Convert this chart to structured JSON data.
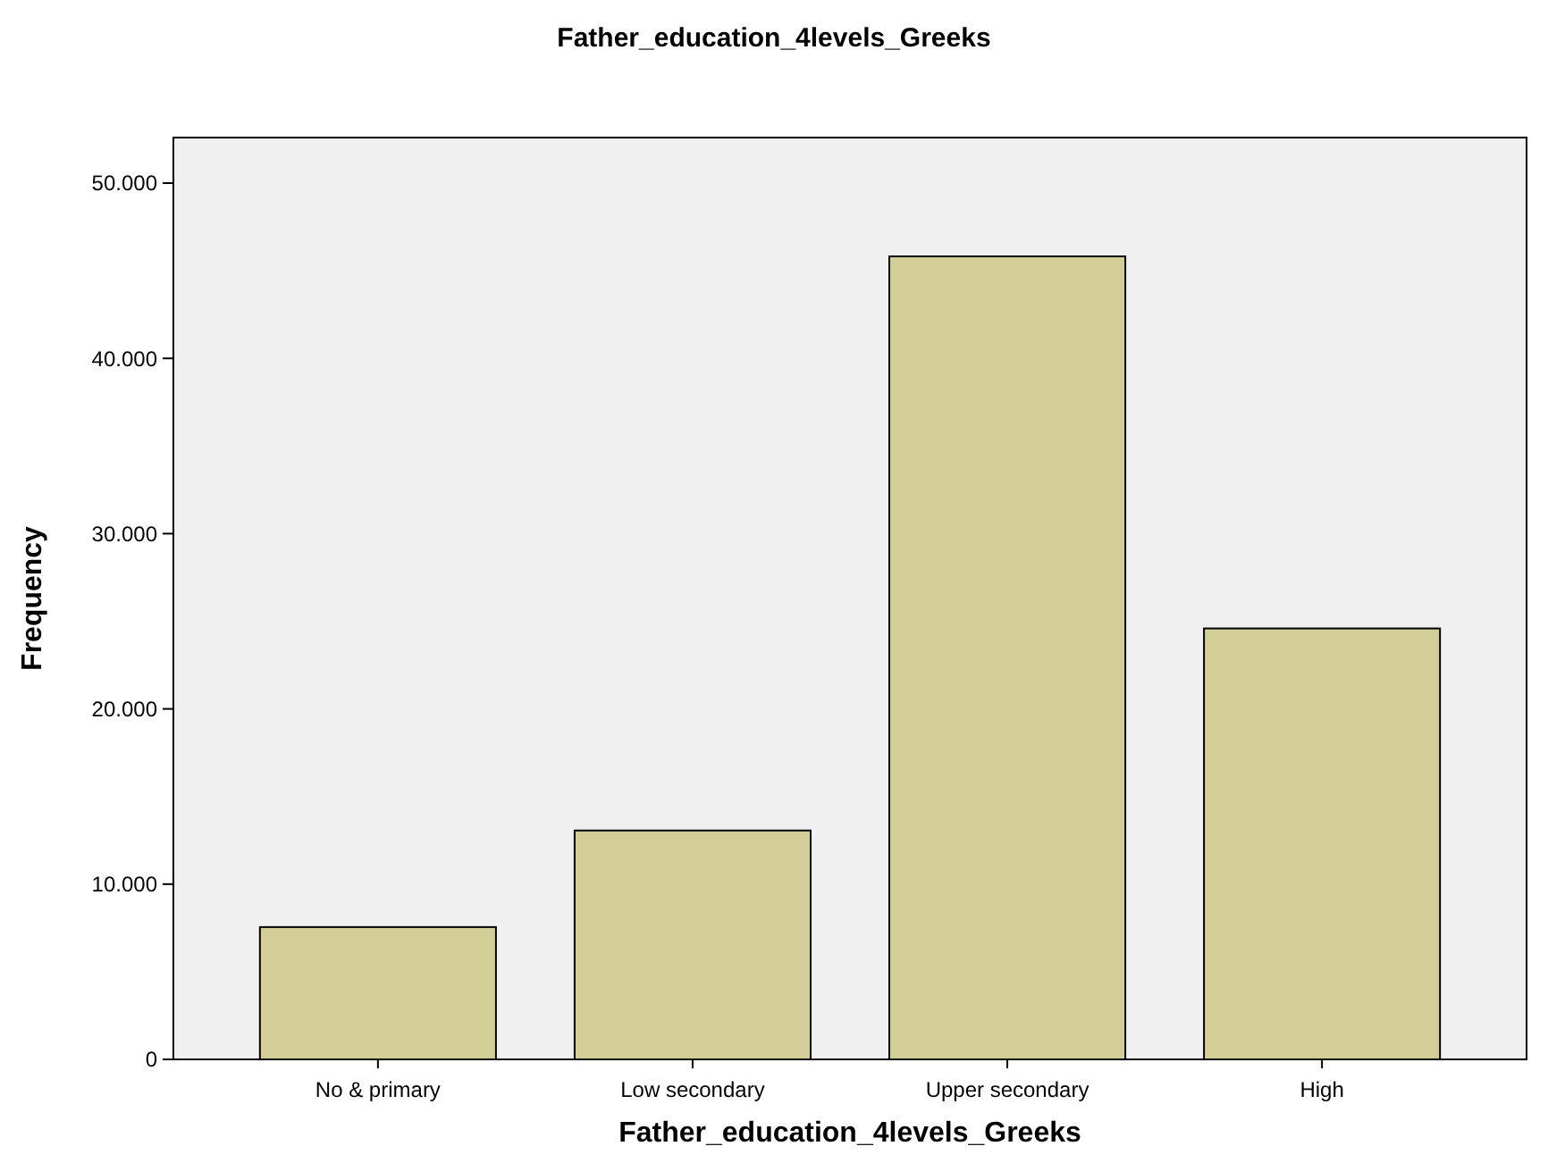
{
  "chart_data": {
    "type": "bar",
    "title": "Father_education_4levels_Greeks",
    "xlabel": "Father_education_4levels_Greeks",
    "ylabel": "Frequency",
    "categories": [
      "No & primary",
      "Low secondary",
      "Upper secondary",
      "High"
    ],
    "values": [
      7550,
      13060,
      45820,
      24590
    ],
    "color": "#d3ce97",
    "ylim": [
      0,
      52600
    ],
    "yticks": [
      0,
      {
        "value": 10000,
        "label": "10.000"
      },
      {
        "value": 20000,
        "label": "20.000"
      },
      {
        "value": 30000,
        "label": "30.000"
      },
      {
        "value": 40000,
        "label": "40.000"
      },
      {
        "value": 50000,
        "label": "50.000"
      }
    ],
    "grid": false
  }
}
